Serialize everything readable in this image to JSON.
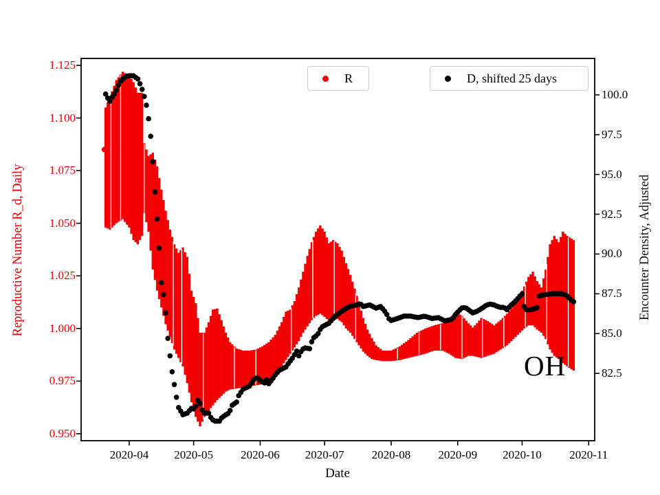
{
  "figure": {
    "background": "#ffffff"
  },
  "annotation": {
    "text": "OH"
  },
  "legends": [
    {
      "label": "R",
      "marker_color": "#f40000",
      "marker": "dot"
    },
    {
      "label": "D, shifted 25 days",
      "marker_color": "#000000",
      "marker": "dot"
    }
  ],
  "axes": {
    "x": {
      "label": "Date",
      "ticks": [
        "2020-04",
        "2020-05",
        "2020-06",
        "2020-07",
        "2020-08",
        "2020-09",
        "2020-10",
        "2020-11"
      ]
    },
    "y_left": {
      "label": "Reproductive Number R_d, Daily",
      "color": "#e60000",
      "ticks": [
        "1.125",
        "1.100",
        "1.075",
        "1.050",
        "1.025",
        "1.000",
        "0.975",
        "0.950"
      ]
    },
    "y_right": {
      "label": "Encounter Density, Adjusted",
      "color": "#000000",
      "ticks": [
        "100.0",
        "97.5",
        "95.0",
        "92.5",
        "90.0",
        "87.5",
        "85.0",
        "82.5"
      ]
    }
  },
  "chart_data": {
    "type": "scatter",
    "x_unit": "days since 2020-03-19",
    "x_domain": [
      -9.4,
      229.8
    ],
    "x_tick_days": [
      13,
      43,
      74,
      104,
      135,
      166,
      196,
      227
    ],
    "x_tick_labels": [
      "2020-04",
      "2020-05",
      "2020-06",
      "2020-07",
      "2020-08",
      "2020-09",
      "2020-10",
      "2020-11"
    ],
    "y_left_ticks": [
      1.125,
      1.1,
      1.075,
      1.05,
      1.025,
      1.0,
      0.975,
      0.95
    ],
    "y_left_range": [
      0.9467,
      1.1283
    ],
    "y_right_ticks": [
      100.0,
      97.5,
      95.0,
      92.5,
      90.0,
      87.5,
      85.0,
      82.5
    ],
    "y_right_range": [
      78.27,
      102.29
    ],
    "grid": false,
    "legend_position": "upper center, two boxes",
    "series": [
      {
        "name": "R",
        "axis": "left",
        "type": "errorbar_band",
        "color": "#f40000",
        "start_dot": {
          "day": 1.5,
          "value": 1.085
        },
        "gap_days": [
          4.5,
          9,
          20,
          33.5,
          37.5,
          47.5,
          62,
          72,
          88.5,
          98.5,
          108.5,
          118.5,
          138,
          148,
          158,
          168,
          177.5,
          187.5,
          197.5,
          207.5,
          217.5
        ],
        "keyframes_day_lo_hi": [
          [
            2,
            1.048,
            1.105
          ],
          [
            4,
            1.047,
            1.11
          ],
          [
            7,
            1.05,
            1.118
          ],
          [
            10,
            1.052,
            1.122
          ],
          [
            13,
            1.048,
            1.12
          ],
          [
            15,
            1.042,
            1.117
          ],
          [
            17,
            1.04,
            1.112
          ],
          [
            19,
            1.044,
            1.112
          ],
          [
            20,
            1.055,
            1.088
          ],
          [
            22,
            1.046,
            1.082
          ],
          [
            24,
            1.028,
            1.0835
          ],
          [
            26,
            1.018,
            1.077
          ],
          [
            28,
            1.01,
            1.066
          ],
          [
            30,
            1.002,
            1.056
          ],
          [
            32,
            0.996,
            1.047
          ],
          [
            34,
            0.99,
            1.04
          ],
          [
            36,
            0.986,
            1.036
          ],
          [
            38,
            0.982,
            1.0385
          ],
          [
            40,
            0.974,
            1.034
          ],
          [
            42,
            0.965,
            1.018
          ],
          [
            44,
            0.958,
            1.012
          ],
          [
            46,
            0.9535,
            0.998
          ],
          [
            48,
            0.958,
            0.998
          ],
          [
            50,
            0.961,
            1.003
          ],
          [
            52,
            0.9635,
            1.009
          ],
          [
            54,
            0.966,
            1.0095
          ],
          [
            56,
            0.968,
            1.004
          ],
          [
            58,
            0.97,
            0.998
          ],
          [
            60,
            0.971,
            0.9935
          ],
          [
            63,
            0.9715,
            0.9905
          ],
          [
            66,
            0.972,
            0.9895
          ],
          [
            69,
            0.9725,
            0.9895
          ],
          [
            72,
            0.973,
            0.99
          ],
          [
            75,
            0.9735,
            0.9915
          ],
          [
            78,
            0.975,
            0.9935
          ],
          [
            81,
            0.978,
            0.997
          ],
          [
            84,
            0.982,
            1.003
          ],
          [
            86,
            0.985,
            1.008
          ],
          [
            88,
            0.988,
            1.009
          ],
          [
            90,
            0.991,
            1.013
          ],
          [
            92,
            0.994,
            1.0195
          ],
          [
            94,
            0.998,
            1.027
          ],
          [
            96,
            1.001,
            1.0345
          ],
          [
            98,
            1.004,
            1.041
          ],
          [
            100,
            1.006,
            1.046
          ],
          [
            102,
            1.007,
            1.049
          ],
          [
            104,
            1.0055,
            1.046
          ],
          [
            106,
            1.0035,
            1.0405
          ],
          [
            108,
            1.004,
            1.042
          ],
          [
            110,
            1.0045,
            1.0405
          ],
          [
            112,
            1.003,
            1.037
          ],
          [
            114,
            1.0,
            1.031
          ],
          [
            116,
            0.998,
            1.0255
          ],
          [
            118,
            0.995,
            1.019
          ],
          [
            120,
            0.992,
            1.012
          ],
          [
            122,
            0.989,
            1.005
          ],
          [
            124,
            0.987,
            0.9995
          ],
          [
            126,
            0.9855,
            0.9955
          ],
          [
            128,
            0.985,
            0.992
          ],
          [
            131,
            0.9845,
            0.9895
          ],
          [
            135,
            0.9845,
            0.9895
          ],
          [
            139,
            0.985,
            0.9915
          ],
          [
            143,
            0.986,
            0.9945
          ],
          [
            147,
            0.987,
            0.998
          ],
          [
            151,
            0.988,
            1.0
          ],
          [
            155,
            0.9895,
            1.0015
          ],
          [
            159,
            0.9895,
            1.0025
          ],
          [
            162,
            0.988,
            1.0045
          ],
          [
            165,
            0.986,
            1.008
          ],
          [
            168,
            0.9855,
            1.006
          ],
          [
            171,
            0.987,
            1.0025
          ],
          [
            173,
            0.987,
            1.0005
          ],
          [
            175,
            0.9865,
            1.0025
          ],
          [
            177,
            0.986,
            1.005
          ],
          [
            180,
            0.987,
            1.0035
          ],
          [
            183,
            0.988,
            1.0015
          ],
          [
            186,
            0.99,
            1.004
          ],
          [
            189,
            0.992,
            1.007
          ],
          [
            192,
            0.995,
            1.011
          ],
          [
            195,
            0.998,
            1.016
          ],
          [
            197,
            1.0,
            1.02
          ],
          [
            199,
            1.0015,
            1.0245
          ],
          [
            201,
            1.0015,
            1.027
          ],
          [
            203,
            0.9995,
            1.0225
          ],
          [
            205,
            0.998,
            1.0195
          ],
          [
            207,
            0.995,
            1.028
          ],
          [
            209,
            0.99,
            1.04
          ],
          [
            211,
            0.987,
            1.044
          ],
          [
            213,
            0.9855,
            1.041
          ],
          [
            215,
            0.9835,
            1.046
          ],
          [
            217,
            0.982,
            1.044
          ],
          [
            220,
            0.98,
            1.042
          ]
        ]
      },
      {
        "name": "D, shifted 25 days",
        "axis": "right",
        "type": "dots",
        "color": "#000000",
        "keyframes_day_value": [
          [
            2,
            100.05
          ],
          [
            3,
            99.8
          ],
          [
            4,
            99.6
          ],
          [
            5,
            99.85
          ],
          [
            6,
            100.05
          ],
          [
            7,
            100.3
          ],
          [
            8,
            100.6
          ],
          [
            9,
            100.85
          ],
          [
            10,
            101.0
          ],
          [
            11,
            101.1
          ],
          [
            12,
            101.18
          ],
          [
            13,
            101.2
          ],
          [
            15,
            101.2
          ],
          [
            16,
            101.1
          ],
          [
            17,
            101.0
          ],
          [
            18,
            100.7
          ],
          [
            19,
            100.35
          ],
          [
            20,
            99.9
          ],
          [
            21,
            99.35
          ],
          [
            22,
            98.5
          ],
          [
            23,
            97.4
          ],
          [
            24,
            95.8
          ],
          [
            25,
            93.9
          ],
          [
            26,
            92.2
          ],
          [
            26.5,
            91.6
          ],
          [
            27.4,
            89.4
          ],
          [
            28,
            88.2
          ],
          [
            29,
            87.45
          ],
          [
            30,
            86.3
          ],
          [
            31,
            84.7
          ],
          [
            32,
            83.6
          ],
          [
            33,
            82.6
          ],
          [
            34,
            81.8
          ],
          [
            35,
            81.0
          ],
          [
            36,
            80.35
          ],
          [
            38,
            79.9
          ],
          [
            40,
            80.0
          ],
          [
            42,
            80.3
          ],
          [
            43.5,
            80.25
          ],
          [
            45,
            80.8
          ],
          [
            46,
            80.6
          ],
          [
            47.5,
            80.0
          ],
          [
            50,
            80.0
          ],
          [
            51.5,
            79.6
          ],
          [
            53,
            79.5
          ],
          [
            55,
            79.5
          ],
          [
            56,
            79.7
          ],
          [
            58,
            79.9
          ],
          [
            59.5,
            80.0
          ],
          [
            61,
            80.5
          ],
          [
            63,
            80.7
          ],
          [
            64,
            81.1
          ],
          [
            66,
            81.5
          ],
          [
            67.5,
            81.6
          ],
          [
            69,
            81.7
          ],
          [
            71,
            82.1
          ],
          [
            72.5,
            82.25
          ],
          [
            74.5,
            82.0
          ],
          [
            76,
            81.9
          ],
          [
            77,
            82.1
          ],
          [
            78,
            81.85
          ],
          [
            79.5,
            82.1
          ],
          [
            81,
            82.4
          ],
          [
            83,
            82.7
          ],
          [
            84.5,
            82.8
          ],
          [
            86,
            82.9
          ],
          [
            87.5,
            83.2
          ],
          [
            89,
            83.45
          ],
          [
            91,
            83.9
          ],
          [
            92,
            83.6
          ],
          [
            93.5,
            84.0
          ],
          [
            95,
            84.1
          ],
          [
            97,
            84.05
          ],
          [
            98.5,
            84.7
          ],
          [
            100,
            84.85
          ],
          [
            101,
            85.0
          ],
          [
            102.5,
            85.4
          ],
          [
            106,
            85.65
          ],
          [
            109,
            86.1
          ],
          [
            112,
            86.4
          ],
          [
            115.5,
            86.7
          ],
          [
            119,
            86.8
          ],
          [
            120.5,
            86.9
          ],
          [
            122,
            86.7
          ],
          [
            125,
            86.8
          ],
          [
            128,
            86.6
          ],
          [
            130,
            86.7
          ],
          [
            131.5,
            86.5
          ],
          [
            133,
            86.2
          ],
          [
            134.5,
            85.8
          ],
          [
            138,
            85.95
          ],
          [
            141,
            86.1
          ],
          [
            144,
            86.1
          ],
          [
            147.5,
            86.0
          ],
          [
            150.5,
            86.1
          ],
          [
            154,
            85.95
          ],
          [
            157,
            86.0
          ],
          [
            160,
            85.8
          ],
          [
            163.5,
            85.9
          ],
          [
            165,
            86.2
          ],
          [
            166.7,
            86.45
          ],
          [
            168.3,
            86.65
          ],
          [
            170,
            86.6
          ],
          [
            171.5,
            86.45
          ],
          [
            173,
            86.3
          ],
          [
            175,
            86.4
          ],
          [
            178,
            86.65
          ],
          [
            179.5,
            86.8
          ],
          [
            181,
            86.85
          ],
          [
            183,
            86.8
          ],
          [
            184.5,
            86.7
          ],
          [
            186,
            86.65
          ],
          [
            187.5,
            86.65
          ],
          [
            189,
            86.5
          ],
          [
            190.5,
            86.75
          ],
          [
            192.3,
            86.95
          ],
          [
            194,
            87.2
          ],
          [
            195.5,
            87.45
          ],
          [
            196.2,
            87.5
          ],
          [
            197,
            86.7
          ],
          [
            198,
            86.5
          ],
          [
            200,
            86.5
          ],
          [
            201.5,
            86.55
          ],
          [
            202.5,
            86.6
          ],
          [
            203.3,
            86.65
          ],
          [
            203.8,
            87.35
          ],
          [
            205,
            87.4
          ],
          [
            207,
            87.45
          ],
          [
            210,
            87.5
          ],
          [
            214,
            87.5
          ],
          [
            216,
            87.45
          ],
          [
            217.5,
            87.3
          ],
          [
            218.5,
            87.15
          ],
          [
            220,
            87.0
          ]
        ]
      }
    ]
  }
}
